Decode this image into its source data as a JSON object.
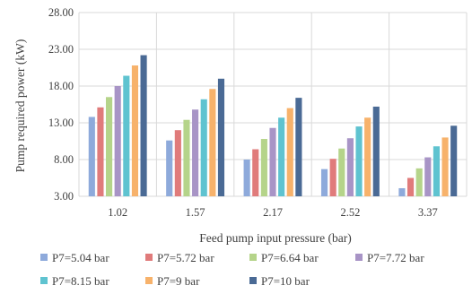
{
  "chart_data": {
    "type": "bar",
    "xlabel": "Feed pump input pressure (bar)",
    "ylabel": "Pump required power (kW)",
    "ylim": [
      3.0,
      28.0
    ],
    "yticks": [
      "3.00",
      "8.00",
      "13.00",
      "18.00",
      "23.00",
      "28.00"
    ],
    "grid": true,
    "legend_position": "bottom",
    "categories": [
      "1.02",
      "1.57",
      "2.17",
      "2.52",
      "3.37"
    ],
    "series": [
      {
        "name": "P7=5.04 bar",
        "color": "#8eaadb",
        "values": [
          13.8,
          10.6,
          8.0,
          6.7,
          4.1
        ]
      },
      {
        "name": "P7=5.72 bar",
        "color": "#e07b7b",
        "values": [
          15.1,
          12.0,
          9.4,
          8.1,
          5.5
        ]
      },
      {
        "name": "P7=6.64 bar",
        "color": "#b5d48a",
        "values": [
          16.5,
          13.4,
          10.8,
          9.5,
          6.8
        ]
      },
      {
        "name": "P7=7.72 bar",
        "color": "#a894c6",
        "values": [
          18.0,
          14.8,
          12.3,
          10.9,
          8.3
        ]
      },
      {
        "name": "P7=8.15 bar",
        "color": "#5fc3d0",
        "values": [
          19.4,
          16.2,
          13.7,
          12.5,
          9.8
        ]
      },
      {
        "name": "P7=9 bar",
        "color": "#f7b26b",
        "values": [
          20.8,
          17.6,
          15.0,
          13.7,
          11.0
        ]
      },
      {
        "name": "P7=10 bar",
        "color": "#4a6a95",
        "values": [
          22.2,
          19.0,
          16.4,
          15.2,
          12.6
        ]
      }
    ]
  }
}
